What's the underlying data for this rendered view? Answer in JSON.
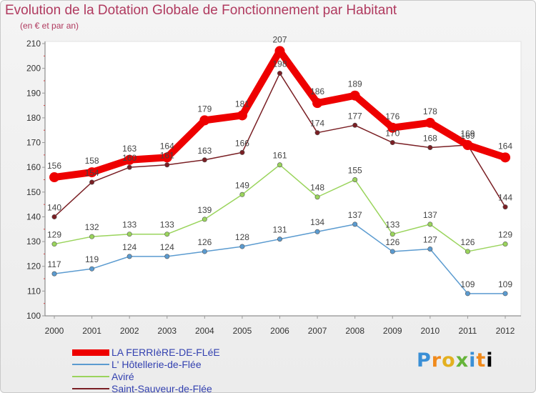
{
  "page": {
    "title": "Evolution de la Dotation Globale de Fonctionnement par Habitant",
    "subtitle": "(en € et par an)",
    "brand": [
      "P",
      "r",
      "o",
      "x",
      "i",
      "t",
      "i"
    ]
  },
  "chart_data": {
    "type": "line",
    "x": [
      "2000",
      "2001",
      "2002",
      "2003",
      "2004",
      "2005",
      "2006",
      "2007",
      "2008",
      "2009",
      "2010",
      "2011",
      "2012"
    ],
    "ylim": [
      100,
      210
    ],
    "yticks": [
      100,
      110,
      120,
      130,
      140,
      150,
      160,
      170,
      180,
      190,
      200,
      210
    ],
    "grid": false,
    "legend_position": "bottom-left",
    "series": [
      {
        "name": "LA FERRIèRE-DE-FLéE",
        "color": "#ee0000",
        "width": 10,
        "values": [
          156,
          158,
          163,
          164,
          179,
          181,
          207,
          186,
          189,
          176,
          178,
          169,
          164
        ],
        "labels": [
          156,
          158,
          163,
          164,
          179,
          181,
          207,
          186,
          189,
          176,
          178,
          169,
          164
        ]
      },
      {
        "name": "L' Hôtellerie-de-Flée",
        "color": "#5b9bd0",
        "width": 1.5,
        "values": [
          117,
          119,
          124,
          124,
          126,
          128,
          131,
          134,
          137,
          126,
          127,
          109,
          109
        ],
        "labels": [
          117,
          119,
          124,
          124,
          126,
          128,
          131,
          134,
          137,
          126,
          127,
          109,
          109
        ]
      },
      {
        "name": "Aviré",
        "color": "#9ad45c",
        "width": 1.5,
        "values": [
          129,
          132,
          133,
          133,
          139,
          149,
          161,
          148,
          155,
          133,
          137,
          126,
          129
        ],
        "labels": [
          129,
          132,
          133,
          133,
          139,
          149,
          161,
          148,
          155,
          133,
          137,
          126,
          129
        ]
      },
      {
        "name": "Saint-Sauveur-de-Flée",
        "color": "#7a1f24",
        "width": 1.5,
        "values": [
          140,
          154,
          160,
          161,
          163,
          166,
          198,
          174,
          177,
          170,
          168,
          169,
          144
        ],
        "labels": [
          140,
          154,
          160,
          161,
          163,
          166,
          198,
          174,
          177,
          170,
          168,
          169,
          144
        ]
      }
    ]
  }
}
